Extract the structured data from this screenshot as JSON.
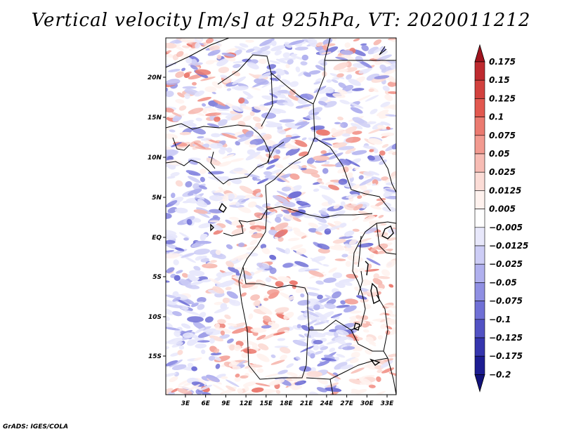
{
  "title": "Vertical velocity [m/s] at 925hPa, VT: 2020011212",
  "credit": "GrADS: IGES/COLA",
  "map": {
    "lat_ticks": [
      "20N",
      "15N",
      "10N",
      "5N",
      "EQ",
      "5S",
      "10S",
      "15S"
    ],
    "lon_ticks": [
      "3E",
      "6E",
      "9E",
      "12E",
      "15E",
      "18E",
      "21E",
      "24E",
      "27E",
      "30E",
      "33E"
    ]
  },
  "colorbar": {
    "levels": [
      "0.175",
      "0.15",
      "0.125",
      "0.1",
      "0.075",
      "0.05",
      "0.025",
      "0.0125",
      "0.005",
      "-0.005",
      "-0.0125",
      "-0.025",
      "-0.05",
      "-0.075",
      "-0.1",
      "-0.125",
      "-0.175",
      "-0.2"
    ],
    "colors": [
      "#a0141e",
      "#be2a2f",
      "#d2413e",
      "#e2584f",
      "#eb7a70",
      "#f29a90",
      "#f7bcb4",
      "#fbdcd6",
      "#fff2ee",
      "#ffffff",
      "#e8e8fb",
      "#cdcdf6",
      "#b0b0ee",
      "#8f8fe3",
      "#7070d6",
      "#5252c4",
      "#3535ae",
      "#1d1d92",
      "#12127a"
    ]
  }
}
